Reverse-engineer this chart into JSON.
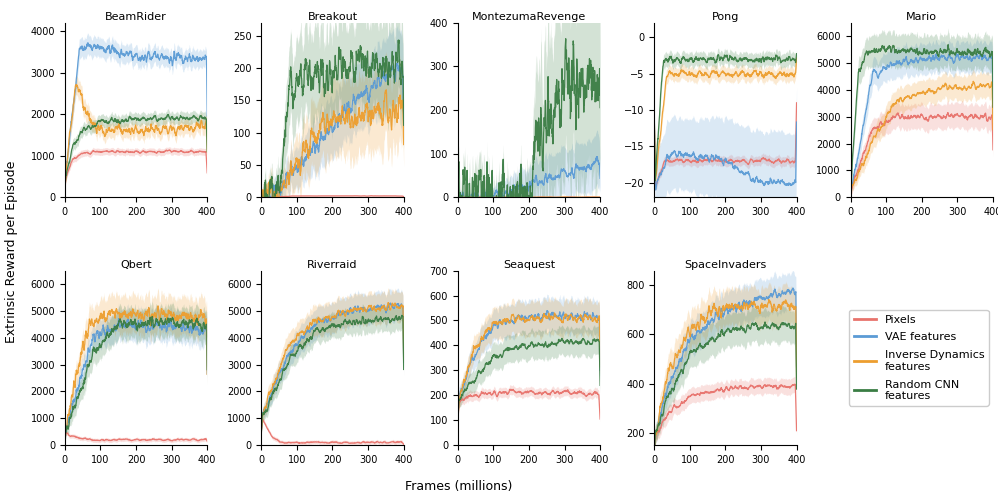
{
  "envs_top": [
    "BeamRider",
    "Breakout",
    "MontezumaRevenge",
    "Pong",
    "Mario"
  ],
  "envs_bot": [
    "Qbert",
    "Riverraid",
    "Seaquest",
    "SpaceInvaders"
  ],
  "colors": {
    "pixels": "#E8736C",
    "vae": "#5B9BD5",
    "inv_dyn": "#ED9E2F",
    "random_cnn": "#3A7D44"
  },
  "alpha_shade": 0.22,
  "xlabel": "Frames (millions)",
  "ylabel": "Extrinsic Reward per Episode",
  "n_steps": 800,
  "seed": 7
}
